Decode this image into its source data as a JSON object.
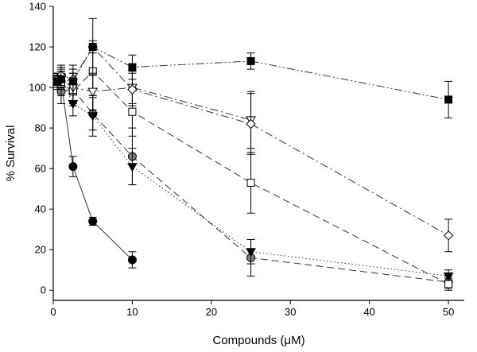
{
  "chart_data": {
    "type": "scatter",
    "title": "",
    "xlabel": "Compounds (μM)",
    "ylabel": "% Survival",
    "xlim": [
      0,
      52
    ],
    "ylim": [
      -5,
      140
    ],
    "xticks": [
      0,
      10,
      20,
      30,
      40,
      50
    ],
    "yticks": [
      0,
      20,
      40,
      60,
      80,
      100,
      120,
      140
    ],
    "grid": false,
    "legend": "none",
    "series": [
      {
        "marker": "circle-filled",
        "fill": "#000000",
        "dash": "none",
        "x": [
          0.5,
          1,
          2.5,
          5,
          10
        ],
        "y": [
          104,
          103,
          61,
          34,
          15
        ],
        "err": [
          3,
          4,
          5,
          2,
          4
        ]
      },
      {
        "marker": "circle-gray",
        "fill": "#808080",
        "dash": "long",
        "x": [
          0.5,
          1,
          2.5,
          5,
          10,
          25,
          50
        ],
        "y": [
          103,
          98,
          99,
          87,
          66,
          16,
          4
        ],
        "err": [
          3,
          6,
          8,
          8,
          14,
          9,
          3
        ]
      },
      {
        "marker": "triangle-down-filled",
        "fill": "#000000",
        "dash": "dot",
        "x": [
          0.5,
          1,
          2.5,
          5,
          10,
          25,
          50
        ],
        "y": [
          104,
          105,
          92,
          86,
          61,
          19,
          7
        ],
        "err": [
          3,
          5,
          6,
          10,
          9,
          6,
          3
        ]
      },
      {
        "marker": "square-open",
        "fill": "#ffffff",
        "dash": "long",
        "x": [
          0.5,
          1,
          2.5,
          5,
          10,
          25,
          50
        ],
        "y": [
          103,
          102,
          98,
          108,
          88,
          53,
          3
        ],
        "err": [
          4,
          6,
          6,
          12,
          12,
          15,
          3
        ]
      },
      {
        "marker": "triangle-down-open",
        "fill": "#ffffff",
        "dash": "dashdot",
        "x": [
          0.5,
          1,
          2.5,
          5,
          10,
          25
        ],
        "y": [
          104,
          104,
          100,
          98,
          100,
          84
        ],
        "err": [
          3,
          5,
          7,
          9,
          8,
          14
        ]
      },
      {
        "marker": "diamond-open",
        "fill": "#ffffff",
        "dash": "dashdot",
        "x": [
          0.5,
          1,
          2.5,
          5,
          10,
          25,
          50
        ],
        "y": [
          104,
          106,
          104,
          120,
          99,
          82,
          27
        ],
        "err": [
          3,
          5,
          7,
          14,
          8,
          15,
          8
        ]
      },
      {
        "marker": "square-filled",
        "fill": "#000000",
        "dash": "dashdotdot",
        "x": [
          0.5,
          1,
          2.5,
          5,
          10,
          25,
          50
        ],
        "y": [
          103,
          104,
          103,
          120,
          110,
          113,
          94
        ],
        "err": [
          3,
          4,
          6,
          3,
          6,
          4,
          9
        ]
      }
    ]
  }
}
